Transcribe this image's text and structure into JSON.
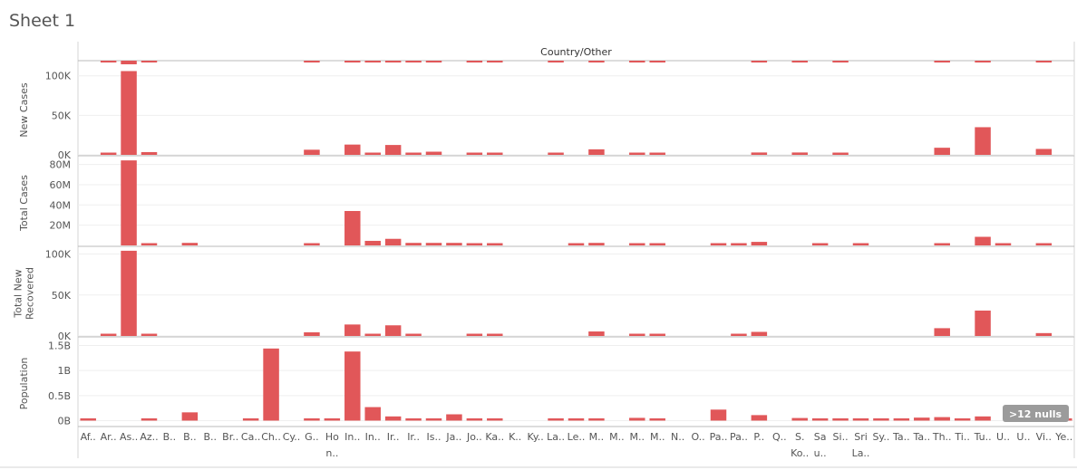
{
  "sheet": {
    "title": "Sheet 1"
  },
  "chart_data": {
    "type": "bar",
    "header": "Country/Other",
    "bar_color": "#e15759",
    "grid": true,
    "null_badge": ">12 nulls",
    "category_labels": [
      "Af..",
      "Ar..",
      "As..",
      "Az..",
      "B..",
      "B..",
      "B..",
      "Br..",
      "Ca..",
      "Ch..",
      "Cy..",
      "G..",
      "Ho\nn..",
      "In..",
      "In..",
      "Ir..",
      "Ir..",
      "Is..",
      "Ja..",
      "Jo..",
      "Ka..",
      "K..",
      "Ky..",
      "La..",
      "Le..",
      "M..",
      "M..",
      "M..",
      "M..",
      "N..",
      "O..",
      "Pa..",
      "Pa..",
      "P..",
      "Q..",
      "S.\nKo..",
      "Sa\nu..",
      "Si..",
      "Sri\nLa..",
      "Sy..",
      "Ta..",
      "Ta..",
      "Th..",
      "Ti..",
      "Tu..",
      "U..",
      "U..",
      "Vi..",
      "Ye.."
    ],
    "panes": [
      {
        "name": "New Cases",
        "ylabel": [
          "New Cases"
        ],
        "ylim": [
          0,
          110000
        ],
        "ticks": [
          {
            "v": 0,
            "label": "0K"
          },
          {
            "v": 50000,
            "label": "50K"
          },
          {
            "v": 100000,
            "label": "100K"
          }
        ],
        "values": [
          0,
          1500,
          106000,
          3500,
          0,
          0,
          0,
          0,
          0,
          0,
          0,
          6500,
          0,
          13000,
          2000,
          12500,
          1500,
          4000,
          0,
          2500,
          1500,
          0,
          0,
          1500,
          0,
          7000,
          0,
          1500,
          1500,
          0,
          0,
          0,
          0,
          3000,
          0,
          3000,
          0,
          1500,
          0,
          0,
          0,
          0,
          9000,
          0,
          35000,
          0,
          0,
          7500,
          0
        ]
      },
      {
        "name": "Total Cases",
        "ylabel": [
          "Total Cases"
        ],
        "ylim": [
          0,
          85000000
        ],
        "ticks": [
          {
            "v": 20000000,
            "label": "20M"
          },
          {
            "v": 40000000,
            "label": "40M"
          },
          {
            "v": 60000000,
            "label": "60M"
          },
          {
            "v": 80000000,
            "label": "80M"
          }
        ],
        "values": [
          0,
          0,
          84000000,
          1000000,
          0,
          2500000,
          0,
          0,
          0,
          0,
          0,
          1000000,
          0,
          34000000,
          4500000,
          6500000,
          2500000,
          2500000,
          2500000,
          1500000,
          1500000,
          0,
          0,
          0,
          1000000,
          2500000,
          0,
          1000000,
          1000000,
          0,
          0,
          2000000,
          1500000,
          3500000,
          0,
          0,
          1000000,
          0,
          1000000,
          0,
          0,
          0,
          2000000,
          0,
          8500000,
          1500000,
          0,
          1000000,
          0
        ]
      },
      {
        "name": "Total New Recovered",
        "ylabel": [
          "Total New",
          "Recovered"
        ],
        "ylim": [
          0,
          105000
        ],
        "ticks": [
          {
            "v": 0,
            "label": "0K"
          },
          {
            "v": 50000,
            "label": "50K"
          },
          {
            "v": 100000,
            "label": "100K"
          }
        ],
        "values": [
          0,
          2000,
          104000,
          2000,
          0,
          0,
          0,
          0,
          0,
          0,
          0,
          4500,
          0,
          14000,
          1500,
          13000,
          2000,
          0,
          0,
          2000,
          2000,
          0,
          0,
          0,
          0,
          5500,
          0,
          2000,
          1500,
          0,
          0,
          0,
          1000,
          5000,
          0,
          0,
          0,
          0,
          0,
          0,
          0,
          0,
          9500,
          0,
          31000,
          0,
          0,
          3500,
          0
        ]
      },
      {
        "name": "Population",
        "ylabel": [
          "Population"
        ],
        "ylim": [
          -100000000,
          1600000000
        ],
        "ticks": [
          {
            "v": 0,
            "label": "0B"
          },
          {
            "v": 500000000,
            "label": "0.5B"
          },
          {
            "v": 1000000000,
            "label": "1B"
          },
          {
            "v": 1500000000,
            "label": "1.5B"
          }
        ],
        "values": [
          40000000,
          0,
          0,
          10000000,
          0,
          165000000,
          0,
          0,
          38000000,
          1440000000,
          0,
          11000000,
          7500000,
          1380000000,
          270000000,
          84000000,
          40000000,
          9000000,
          126000000,
          10000000,
          19000000,
          0,
          0,
          7000000,
          7000000,
          33000000,
          0,
          55000000,
          29000000,
          0,
          0,
          220000000,
          0,
          110000000,
          0,
          52000000,
          35000000,
          6000000,
          21000000,
          18000000,
          10000000,
          60000000,
          70000000,
          1300000,
          84000000,
          0,
          0,
          97000000,
          30000000
        ]
      }
    ]
  }
}
